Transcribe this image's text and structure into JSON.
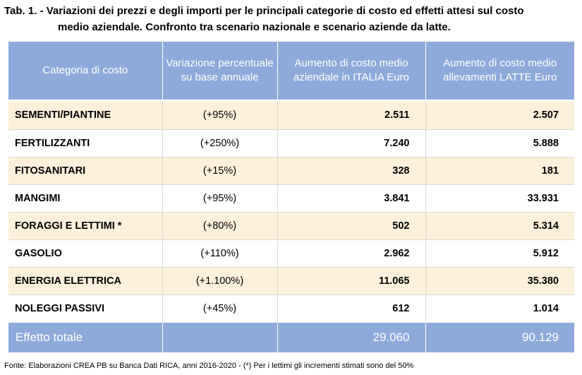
{
  "title": {
    "line1": "Tab. 1. - Variazioni dei prezzi e degli importi per le principali categorie di costo ed effetti attesi sul costo",
    "line2": "medio aziendale. Confronto tra scenario nazionale e scenario aziende da latte."
  },
  "table": {
    "headers": [
      "Categoria di costo",
      "Variazione percentuale su base annuale",
      "Aumento di costo medio aziendale in ITALIA Euro",
      "Aumento di costo medio allevamenti LATTE Euro"
    ],
    "rows": [
      {
        "category": "SEMENTI/PIANTINE",
        "variation": "(+95%)",
        "italia": "2.511",
        "latte": "2.507"
      },
      {
        "category": "FERTILIZZANTI",
        "variation": "(+250%)",
        "italia": "7.240",
        "latte": "5.888"
      },
      {
        "category": "FITOSANITARI",
        "variation": "(+15%)",
        "italia": "328",
        "latte": "181"
      },
      {
        "category": "MANGIMI",
        "variation": "(+95%)",
        "italia": "3.841",
        "latte": "33.931"
      },
      {
        "category": "FORAGGI E LETTIMI *",
        "variation": "(+80%)",
        "italia": "502",
        "latte": "5.314"
      },
      {
        "category": "GASOLIO",
        "variation": "(+110%)",
        "italia": "2.962",
        "latte": "5.912"
      },
      {
        "category": "ENERGIA ELETTRICA",
        "variation": "(+1.100%)",
        "italia": "11.065",
        "latte": "35.380"
      },
      {
        "category": "NOLEGGI PASSIVI",
        "variation": "(+45%)",
        "italia": "612",
        "latte": "1.014"
      }
    ],
    "total": {
      "label": "Effetto totale",
      "italia": "29.060",
      "latte": "90.129"
    }
  },
  "footnote": "Fonte: Elaborazioni CREA PB su Banca Dati RICA, anni 2016-2020 -  (*) Per i lettimi gli incrementi stimati sono del 50%",
  "colors": {
    "header": "#8eaadb",
    "stripe": "#fdf1db"
  }
}
